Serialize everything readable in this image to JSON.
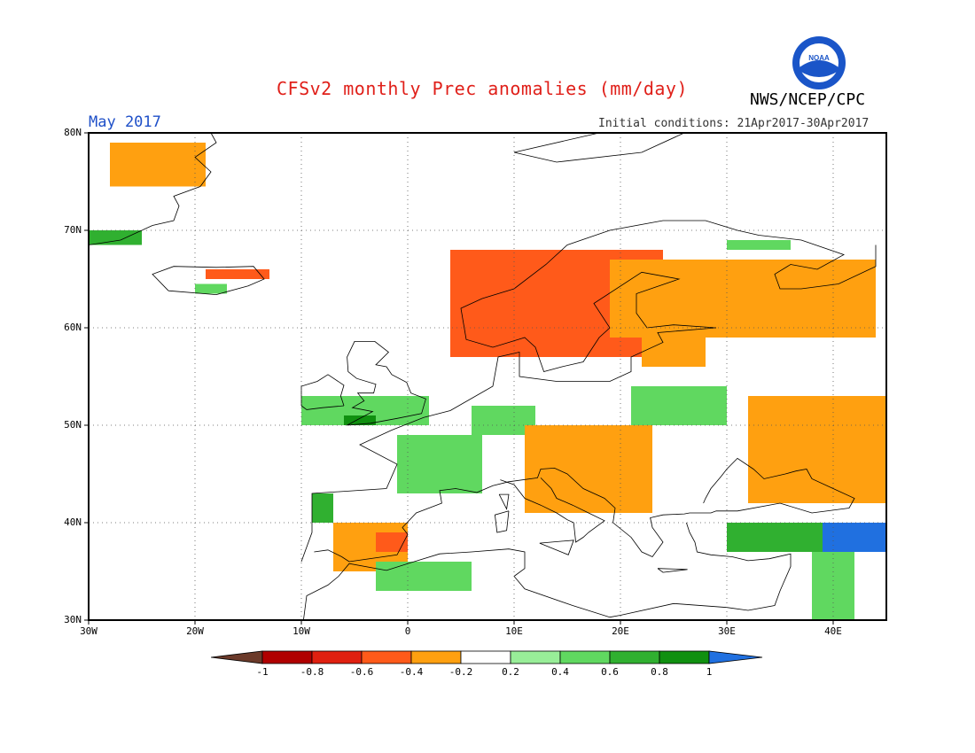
{
  "header": {
    "title": "CFSv2 monthly Prec anomalies (mm/day)",
    "agency": "NWS/NCEP/CPC",
    "period": "May 2017",
    "initial_conditions": "Initial conditions: 21Apr2017-30Apr2017",
    "logo_text": "NOAA"
  },
  "map": {
    "lon_range": [
      -30,
      45
    ],
    "lat_range": [
      30,
      80
    ],
    "lat_ticks": [
      {
        "value": 80,
        "label": "80N"
      },
      {
        "value": 70,
        "label": "70N"
      },
      {
        "value": 60,
        "label": "60N"
      },
      {
        "value": 50,
        "label": "50N"
      },
      {
        "value": 40,
        "label": "40N"
      },
      {
        "value": 30,
        "label": "30N"
      }
    ],
    "lon_ticks": [
      {
        "value": -30,
        "label": "30W"
      },
      {
        "value": -20,
        "label": "20W"
      },
      {
        "value": -10,
        "label": "10W"
      },
      {
        "value": 0,
        "label": "0"
      },
      {
        "value": 10,
        "label": "10E"
      },
      {
        "value": 20,
        "label": "20E"
      },
      {
        "value": 30,
        "label": "30E"
      },
      {
        "value": 40,
        "label": "40E"
      }
    ],
    "gridlines": "dotted",
    "anomaly_regions": [
      {
        "name": "Greenland",
        "lon": [
          -28,
          -19
        ],
        "lat": [
          74.5,
          79
        ],
        "level": "-0.4"
      },
      {
        "name": "Greenland east coast",
        "lon": [
          -30,
          -25
        ],
        "lat": [
          68.5,
          70
        ],
        "level": "0.6"
      },
      {
        "name": "Iceland north",
        "lon": [
          -19,
          -13
        ],
        "lat": [
          65,
          66
        ],
        "level": "-0.6"
      },
      {
        "name": "Iceland south",
        "lon": [
          -20,
          -17
        ],
        "lat": [
          63.5,
          64.5
        ],
        "level": "0.4"
      },
      {
        "name": "Norway coast",
        "lon": [
          5,
          9
        ],
        "lat": [
          59.5,
          63
        ],
        "level": "-1"
      },
      {
        "name": "Scandinavia core",
        "lon": [
          7,
          18
        ],
        "lat": [
          59,
          66
        ],
        "level": "-0.8"
      },
      {
        "name": "Scandinavia edge",
        "lon": [
          4,
          24
        ],
        "lat": [
          57,
          68
        ],
        "level": "-0.6"
      },
      {
        "name": "North Russia",
        "lon": [
          21,
          37
        ],
        "lat": [
          61,
          65
        ],
        "level": "-0.8"
      },
      {
        "name": "North Russia edge",
        "lon": [
          19,
          44
        ],
        "lat": [
          59,
          67
        ],
        "level": "-0.4"
      },
      {
        "name": "Baltic",
        "lon": [
          22,
          28
        ],
        "lat": [
          56,
          60
        ],
        "level": "-0.4"
      },
      {
        "name": "Kola",
        "lon": [
          30,
          36
        ],
        "lat": [
          68,
          69
        ],
        "level": "0.4"
      },
      {
        "name": "British Isles",
        "lon": [
          -10,
          2
        ],
        "lat": [
          50,
          53
        ],
        "level": "0.4"
      },
      {
        "name": "Wales",
        "lon": [
          -6,
          -3
        ],
        "lat": [
          50,
          51
        ],
        "level": "0.8"
      },
      {
        "name": "France",
        "lon": [
          -1,
          7
        ],
        "lat": [
          43,
          49
        ],
        "level": "0.4"
      },
      {
        "name": "Central Europe",
        "lon": [
          6,
          12
        ],
        "lat": [
          49,
          52
        ],
        "level": "0.4"
      },
      {
        "name": "Belarus",
        "lon": [
          21,
          30
        ],
        "lat": [
          50,
          54
        ],
        "level": "0.4"
      },
      {
        "name": "Italy Balkans",
        "lon": [
          12,
          20
        ],
        "lat": [
          42,
          47
        ],
        "level": "-0.6"
      },
      {
        "name": "Adriatic core",
        "lon": [
          13,
          17
        ],
        "lat": [
          43,
          46
        ],
        "level": "-0.8"
      },
      {
        "name": "Alps Hungary",
        "lon": [
          11,
          23
        ],
        "lat": [
          41,
          50
        ],
        "level": "-0.4"
      },
      {
        "name": "Iberia north",
        "lon": [
          -9,
          -7
        ],
        "lat": [
          40,
          43
        ],
        "level": "0.6"
      },
      {
        "name": "Spain",
        "lon": [
          -7,
          0
        ],
        "lat": [
          35,
          40
        ],
        "level": "-0.4"
      },
      {
        "name": "Spain east",
        "lon": [
          -3,
          0
        ],
        "lat": [
          37,
          39
        ],
        "level": "-0.6"
      },
      {
        "name": "North Africa",
        "lon": [
          -3,
          6
        ],
        "lat": [
          33,
          36
        ],
        "level": "0.4"
      },
      {
        "name": "Ukraine",
        "lon": [
          35,
          45
        ],
        "lat": [
          44,
          51
        ],
        "level": "-0.6"
      },
      {
        "name": "Ukraine core",
        "lon": [
          39,
          45
        ],
        "lat": [
          43,
          47
        ],
        "level": "-0.8"
      },
      {
        "name": "Caspian edge",
        "lon": [
          32,
          45
        ],
        "lat": [
          42,
          53
        ],
        "level": "-0.4"
      },
      {
        "name": "Turkey",
        "lon": [
          30,
          45
        ],
        "lat": [
          37,
          40
        ],
        "level": "0.6"
      },
      {
        "name": "East Turkey",
        "lon": [
          39,
          45
        ],
        "lat": [
          37,
          40
        ],
        "level": "1"
      },
      {
        "name": "Levant",
        "lon": [
          38,
          42
        ],
        "lat": [
          30,
          37
        ],
        "level": "0.4"
      }
    ]
  },
  "colorbar": {
    "colors": [
      "#6b3a2a",
      "#b00000",
      "#e02010",
      "#ff5a1a",
      "#ffa010",
      "#ffffff",
      "#98ee98",
      "#60d860",
      "#30b030",
      "#109010",
      "#2070e0"
    ],
    "tick_labels": [
      "-1",
      "-0.8",
      "-0.6",
      "-0.4",
      "-0.2",
      "0.2",
      "0.4",
      "0.6",
      "0.8",
      "1"
    ]
  },
  "colors": {
    "title": "#e0201a",
    "period": "#1f50c8"
  }
}
